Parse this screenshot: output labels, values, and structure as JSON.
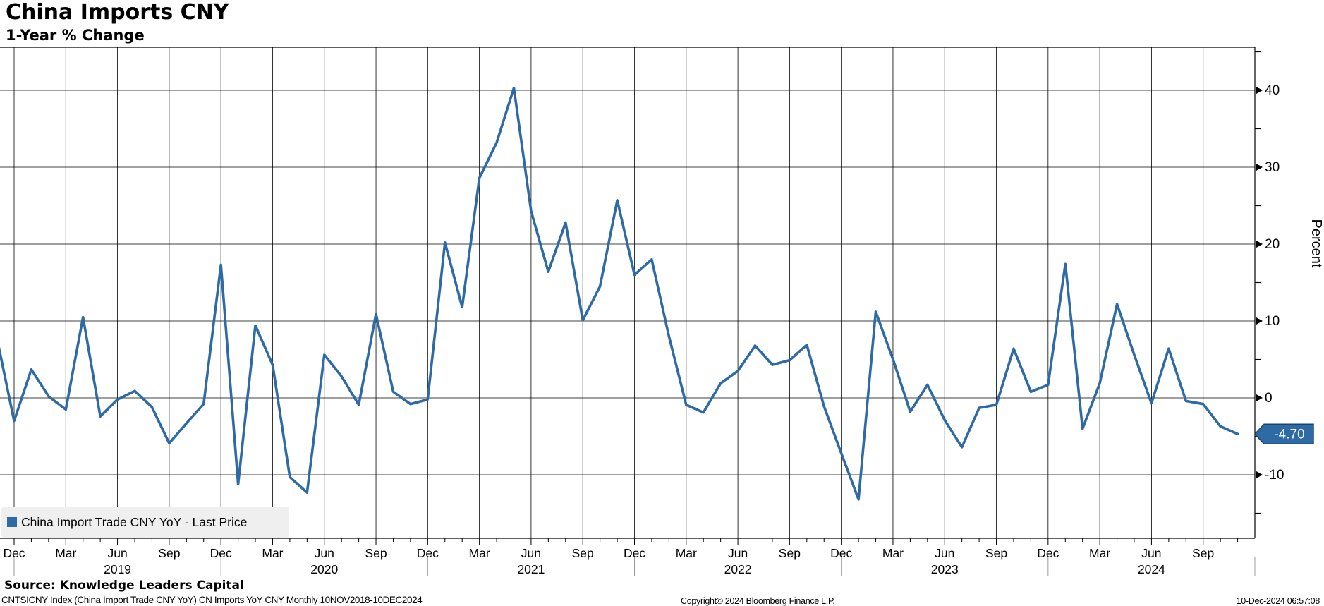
{
  "title": "China Imports CNY",
  "subtitle": "1-Year % Change",
  "colors": {
    "line": "#2e6ba4",
    "badge_fill": "#2e6ba4",
    "badge_border": "#17456e",
    "grid": "#000000",
    "legend_bg": "#efefef",
    "year_separator": "#999999"
  },
  "legend": {
    "label": "China Import Trade CNY YoY - Last Price"
  },
  "y_axis": {
    "title": "Percent",
    "major_ticks": [
      40,
      30,
      20,
      10,
      0,
      -10
    ],
    "minor_ticks": [
      45,
      35,
      25,
      15,
      5,
      -5,
      -15
    ],
    "last_price_label": "-4.70",
    "last_price_value": -4.7
  },
  "x_axis": {
    "quarter_ticks": [
      {
        "i": 1,
        "label": "Dec"
      },
      {
        "i": 4,
        "label": "Mar"
      },
      {
        "i": 7,
        "label": "Jun"
      },
      {
        "i": 10,
        "label": "Sep"
      },
      {
        "i": 13,
        "label": "Dec"
      },
      {
        "i": 16,
        "label": "Mar"
      },
      {
        "i": 19,
        "label": "Jun"
      },
      {
        "i": 22,
        "label": "Sep"
      },
      {
        "i": 25,
        "label": "Dec"
      },
      {
        "i": 28,
        "label": "Mar"
      },
      {
        "i": 31,
        "label": "Jun"
      },
      {
        "i": 34,
        "label": "Sep"
      },
      {
        "i": 37,
        "label": "Dec"
      },
      {
        "i": 40,
        "label": "Mar"
      },
      {
        "i": 43,
        "label": "Jun"
      },
      {
        "i": 46,
        "label": "Sep"
      },
      {
        "i": 49,
        "label": "Dec"
      },
      {
        "i": 52,
        "label": "Mar"
      },
      {
        "i": 55,
        "label": "Jun"
      },
      {
        "i": 58,
        "label": "Sep"
      },
      {
        "i": 61,
        "label": "Dec"
      },
      {
        "i": 64,
        "label": "Mar"
      },
      {
        "i": 67,
        "label": "Jun"
      },
      {
        "i": 70,
        "label": "Sep"
      }
    ],
    "year_labels": [
      {
        "i": 7,
        "label": "2019"
      },
      {
        "i": 19,
        "label": "2020"
      },
      {
        "i": 31,
        "label": "2021"
      },
      {
        "i": 43,
        "label": "2022"
      },
      {
        "i": 55,
        "label": "2023"
      },
      {
        "i": 67,
        "label": "2024"
      }
    ],
    "year_separators": [
      1,
      13,
      25,
      37,
      49,
      61,
      73
    ]
  },
  "footer": {
    "source": "Source: Knowledge Leaders Capital",
    "terminal": "CNTSICNY Index (China Import Trade CNY YoY) CN Imports YoY CNY  Monthly 10NOV2018-10DEC2024",
    "copyright": "Copyright© 2024 Bloomberg Finance L.P.",
    "timestamp": "10-Dec-2024 06:57:08"
  },
  "chart_data": {
    "type": "line",
    "title": "China Imports CNY",
    "subtitle": "1-Year % Change",
    "ylabel": "Percent",
    "ylim": [
      -18.3,
      45.6
    ],
    "grid": true,
    "legend_position": "bottom-left",
    "series_name": "China Import Trade CNY YoY - Last Price",
    "x": [
      "2018-11",
      "2018-12",
      "2019-01",
      "2019-02",
      "2019-03",
      "2019-04",
      "2019-05",
      "2019-06",
      "2019-07",
      "2019-08",
      "2019-09",
      "2019-10",
      "2019-11",
      "2019-12",
      "2020-01",
      "2020-02",
      "2020-03",
      "2020-04",
      "2020-05",
      "2020-06",
      "2020-07",
      "2020-08",
      "2020-09",
      "2020-10",
      "2020-11",
      "2020-12",
      "2021-01",
      "2021-02",
      "2021-03",
      "2021-04",
      "2021-05",
      "2021-06",
      "2021-07",
      "2021-08",
      "2021-09",
      "2021-10",
      "2021-11",
      "2021-12",
      "2022-01",
      "2022-02",
      "2022-03",
      "2022-04",
      "2022-05",
      "2022-06",
      "2022-07",
      "2022-08",
      "2022-09",
      "2022-10",
      "2022-11",
      "2022-12",
      "2023-01",
      "2023-02",
      "2023-03",
      "2023-04",
      "2023-05",
      "2023-06",
      "2023-07",
      "2023-08",
      "2023-09",
      "2023-10",
      "2023-11",
      "2023-12",
      "2024-01",
      "2024-02",
      "2024-03",
      "2024-04",
      "2024-05",
      "2024-06",
      "2024-07",
      "2024-08",
      "2024-09",
      "2024-10",
      "2024-11"
    ],
    "values": [
      7.8,
      -3.0,
      3.7,
      0.2,
      -1.5,
      10.5,
      -2.4,
      -0.2,
      0.9,
      -1.2,
      -5.9,
      -3.3,
      -0.8,
      17.3,
      -11.2,
      9.4,
      4.3,
      -10.3,
      -12.3,
      5.6,
      2.8,
      -0.9,
      10.9,
      0.8,
      -0.8,
      -0.2,
      20.2,
      11.8,
      28.6,
      33.2,
      40.3,
      24.3,
      16.4,
      22.8,
      10.1,
      14.5,
      25.7,
      16.0,
      18.0,
      8.0,
      -0.9,
      -1.9,
      1.9,
      3.5,
      6.8,
      4.3,
      4.9,
      6.9,
      -1.1,
      -7.2,
      -13.2,
      11.2,
      5.0,
      -1.8,
      1.7,
      -2.9,
      -6.4,
      -1.3,
      -0.9,
      6.4,
      0.8,
      1.7,
      17.4,
      -4.0,
      1.9,
      12.2,
      5.6,
      -0.7,
      6.4,
      -0.4,
      -0.8,
      -3.7,
      -4.7
    ]
  }
}
